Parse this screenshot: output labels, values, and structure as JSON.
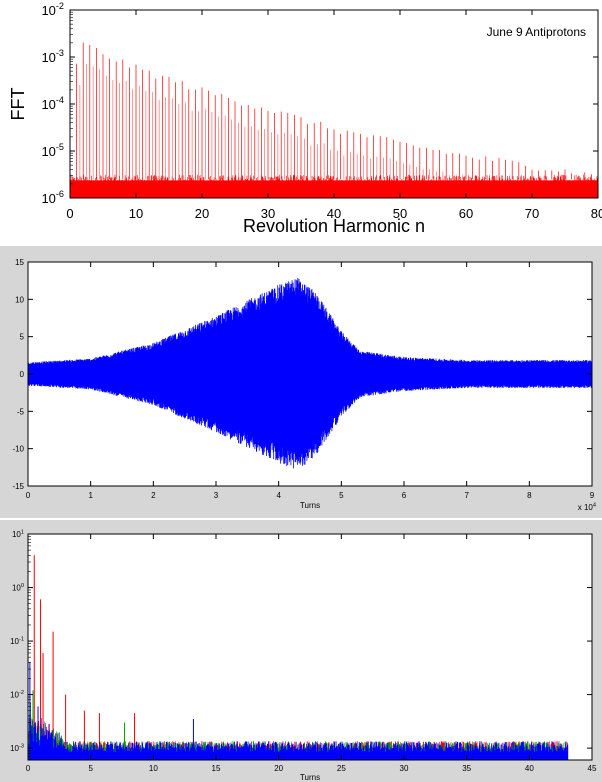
{
  "chart_data": [
    {
      "type": "line",
      "title": "",
      "annotation": "June 9 Antiprotons",
      "xlabel": "Revolution Harmonic n",
      "ylabel": "FFT",
      "xlim": [
        0,
        80
      ],
      "ylim": [
        1e-06,
        0.01
      ],
      "yscale": "log",
      "x_ticks": [
        "0",
        "10",
        "20",
        "30",
        "40",
        "50",
        "60",
        "70",
        "80"
      ],
      "y_ticks": [
        {
          "base": "10",
          "exp": "-6"
        },
        {
          "base": "10",
          "exp": "-5"
        },
        {
          "base": "10",
          "exp": "-4"
        },
        {
          "base": "10",
          "exp": "-3"
        },
        {
          "base": "10",
          "exp": "-2"
        }
      ],
      "color": "#ff0000",
      "noise_floor": 2.5e-06,
      "harmonic_spacing": 1,
      "harmonic_peaks": [
        {
          "n": 1,
          "value": 0.0008
        },
        {
          "n": 2,
          "value": 0.0019
        },
        {
          "n": 3,
          "value": 0.0017
        },
        {
          "n": 5,
          "value": 0.0012
        },
        {
          "n": 10,
          "value": 0.0006
        },
        {
          "n": 20,
          "value": 0.0002
        },
        {
          "n": 30,
          "value": 8e-05
        },
        {
          "n": 40,
          "value": 3e-05
        },
        {
          "n": 50,
          "value": 1.5e-05
        },
        {
          "n": 60,
          "value": 8e-06
        },
        {
          "n": 70,
          "value": 5e-06
        },
        {
          "n": 80,
          "value": 3e-06
        }
      ]
    },
    {
      "type": "line",
      "title": "",
      "xlabel": "Turns",
      "ylabel": "",
      "xlim": [
        0,
        9
      ],
      "ylim": [
        -15,
        15
      ],
      "x_exponent": {
        "base": "x 10",
        "exp": "4"
      },
      "x_ticks": [
        "0",
        "1",
        "2",
        "3",
        "4",
        "5",
        "6",
        "7",
        "8",
        "9"
      ],
      "y_ticks": [
        "-15",
        "-10",
        "-5",
        "0",
        "5",
        "10",
        "15"
      ],
      "color": "#0000ff",
      "envelope": [
        {
          "x": 0,
          "amp": 1.5
        },
        {
          "x": 1,
          "amp": 2.0
        },
        {
          "x": 2,
          "amp": 4.0
        },
        {
          "x": 3,
          "amp": 7.5
        },
        {
          "x": 3.5,
          "amp": 9.5
        },
        {
          "x": 4,
          "amp": 11.5
        },
        {
          "x": 4.3,
          "amp": 12.5
        },
        {
          "x": 4.6,
          "amp": 10.5
        },
        {
          "x": 5,
          "amp": 5.5
        },
        {
          "x": 5.3,
          "amp": 3.0
        },
        {
          "x": 6,
          "amp": 2.2
        },
        {
          "x": 7,
          "amp": 1.8
        },
        {
          "x": 8,
          "amp": 1.8
        },
        {
          "x": 9,
          "amp": 1.8
        }
      ]
    },
    {
      "type": "line",
      "title": "",
      "xlabel": "Turns",
      "ylabel": "",
      "xlim": [
        0,
        45
      ],
      "ylim": [
        0.0006,
        10
      ],
      "yscale": "log",
      "x_ticks": [
        "0",
        "5",
        "10",
        "15",
        "20",
        "25",
        "30",
        "35",
        "40",
        "45"
      ],
      "y_ticks": [
        {
          "base": "10",
          "exp": "-3"
        },
        {
          "base": "10",
          "exp": "-2"
        },
        {
          "base": "10",
          "exp": "-1"
        },
        {
          "base": "10",
          "exp": "0"
        },
        {
          "base": "10",
          "exp": "1"
        }
      ],
      "noise_floor": 0.001,
      "series": [
        {
          "color": "#ff0000",
          "peaks": [
            {
              "x": 0.5,
              "value": 4.0
            },
            {
              "x": 1.0,
              "value": 0.6
            },
            {
              "x": 1.2,
              "value": 0.06
            },
            {
              "x": 2.0,
              "value": 0.15
            },
            {
              "x": 3.0,
              "value": 0.01
            },
            {
              "x": 4.5,
              "value": 0.005
            },
            {
              "x": 5.7,
              "value": 0.0045
            },
            {
              "x": 8.5,
              "value": 0.0045
            }
          ]
        },
        {
          "color": "#00aa00",
          "peaks": [
            {
              "x": 0.2,
              "value": 0.007
            },
            {
              "x": 0.4,
              "value": 0.012
            },
            {
              "x": 7.7,
              "value": 0.003
            }
          ]
        },
        {
          "color": "#0000ff",
          "peaks": [
            {
              "x": 0.15,
              "value": 0.04
            },
            {
              "x": 0.8,
              "value": 0.006
            },
            {
              "x": 13.2,
              "value": 0.0035
            }
          ]
        }
      ]
    }
  ]
}
